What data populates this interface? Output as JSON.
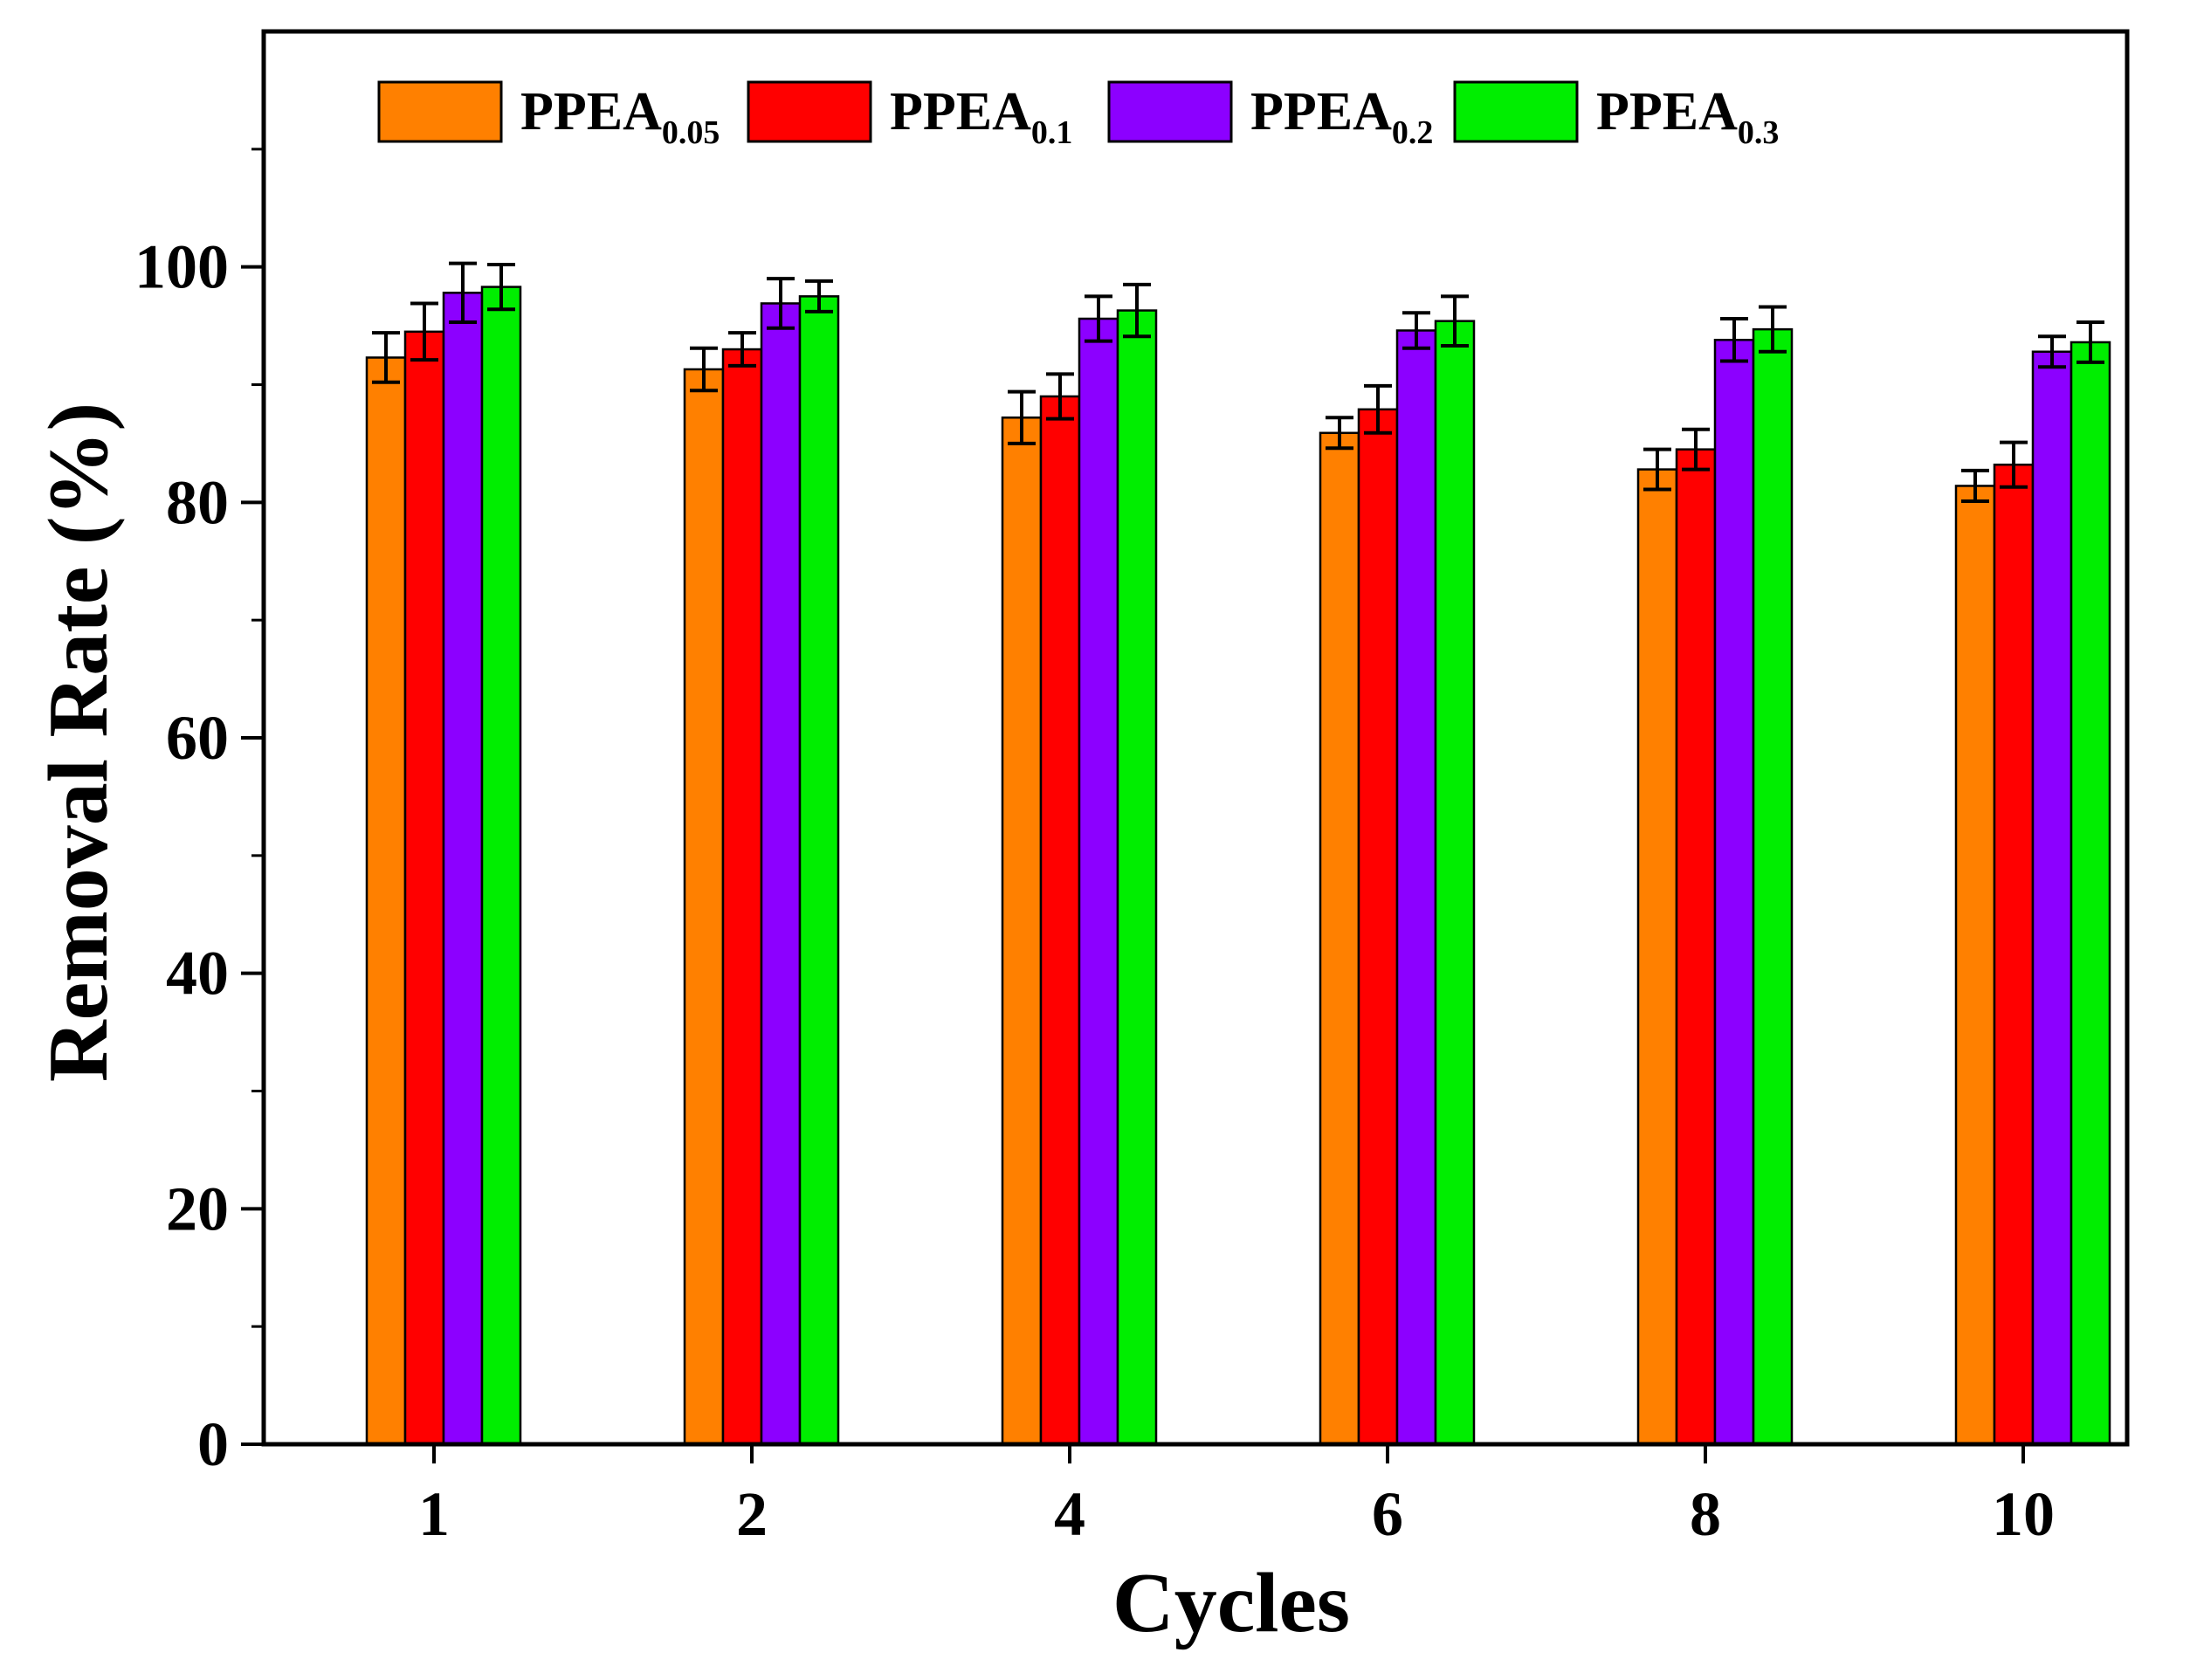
{
  "chart_data": {
    "type": "bar",
    "title": "",
    "xlabel": "Cycles",
    "ylabel": "Removal Rate (%)",
    "categories": [
      "1",
      "2",
      "4",
      "6",
      "8",
      "10"
    ],
    "ylim": [
      0,
      120
    ],
    "yticks": [
      0,
      20,
      40,
      60,
      80,
      100
    ],
    "ytick_labels": [
      "0",
      "20",
      "40",
      "60",
      "80",
      "100"
    ],
    "legend_position": "top",
    "series": [
      {
        "name": "PPEA",
        "sub": "0.05",
        "color": "#FF8000",
        "values": [
          92.3,
          91.3,
          87.2,
          85.9,
          82.8,
          81.4
        ],
        "errors": [
          2.1,
          1.8,
          2.2,
          1.3,
          1.7,
          1.3
        ]
      },
      {
        "name": "PPEA",
        "sub": "0.1",
        "color": "#FF0000",
        "values": [
          94.5,
          93.0,
          89.0,
          87.9,
          84.5,
          83.2
        ],
        "errors": [
          2.4,
          1.4,
          1.9,
          2.0,
          1.7,
          1.9
        ]
      },
      {
        "name": "PPEA",
        "sub": "0.2",
        "color": "#8C00FF",
        "values": [
          97.8,
          96.9,
          95.6,
          94.6,
          93.8,
          92.8
        ],
        "errors": [
          2.5,
          2.1,
          1.9,
          1.5,
          1.8,
          1.3
        ]
      },
      {
        "name": "PPEA",
        "sub": "0.3",
        "color": "#00EE00",
        "values": [
          98.3,
          97.5,
          96.3,
          95.4,
          94.7,
          93.6
        ],
        "errors": [
          1.9,
          1.3,
          2.2,
          2.1,
          1.9,
          1.7
        ]
      }
    ]
  }
}
